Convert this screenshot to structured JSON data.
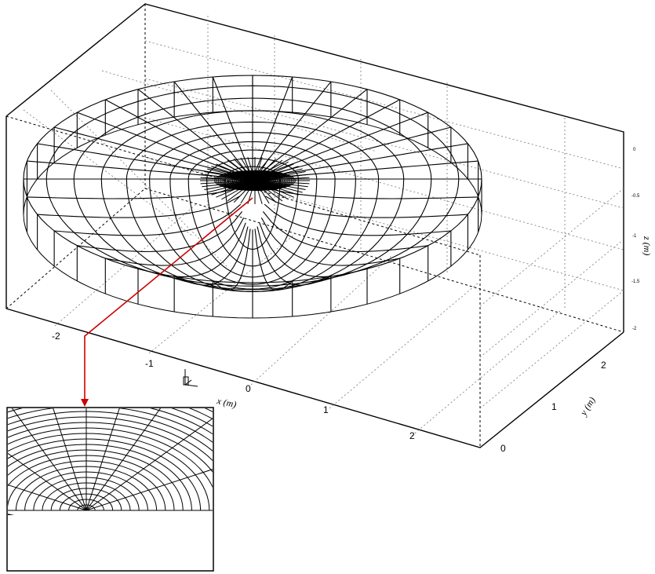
{
  "figure": {
    "x_axis": {
      "label": "x (m)",
      "tick_labels": [
        "-2",
        "-1",
        "0",
        "1",
        "2"
      ],
      "range": [
        -2.5,
        2.8
      ]
    },
    "y_axis": {
      "label": "y (m)",
      "tick_labels": [
        "0",
        "1",
        "2"
      ],
      "range": [
        0,
        2.7
      ]
    },
    "z_axis": {
      "label": "z (m)",
      "tick_labels": [
        "0",
        "-0.5",
        "-1",
        "-1.5",
        "-2"
      ],
      "range": [
        -2,
        0.1
      ]
    },
    "mesh": {
      "description_type": "half-ellipsoidal bowl mesh, radial lines converging to a refined region near the center",
      "colors": {
        "lines": "#000000",
        "annotation": "#cc0000",
        "background": "#ffffff"
      }
    },
    "inset": {
      "shows": "zoomed detail of mesh refinement region"
    }
  }
}
